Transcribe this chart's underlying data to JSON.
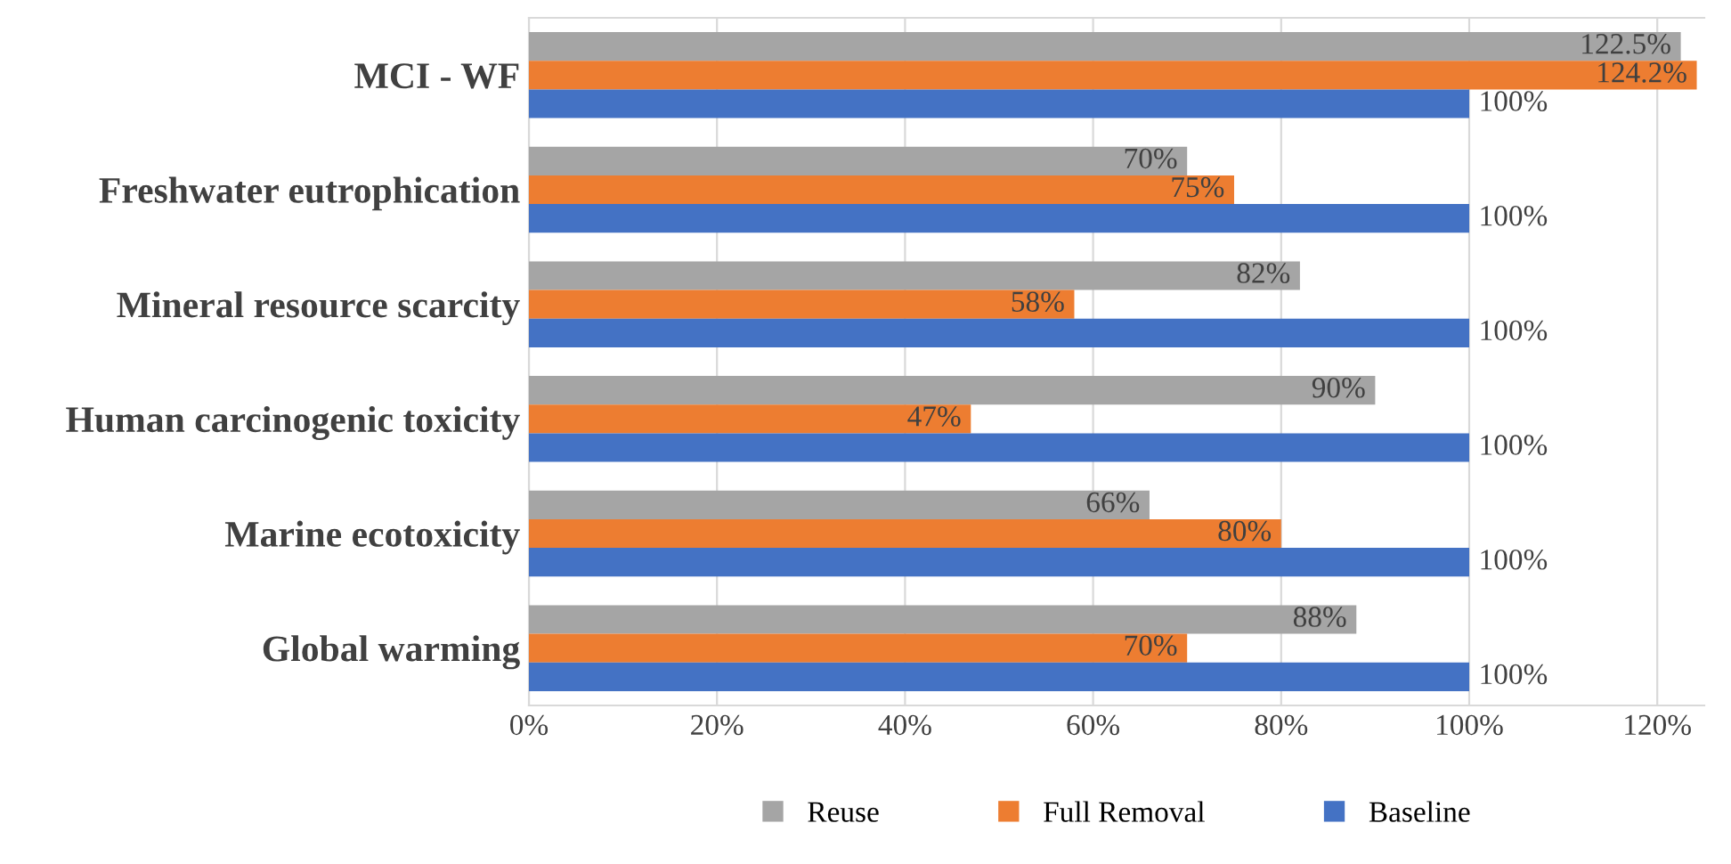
{
  "chart_data": {
    "type": "bar",
    "orientation": "horizontal",
    "categories": [
      "MCI - WF",
      "Freshwater eutrophication",
      "Mineral resource scarcity",
      "Human carcinogenic toxicity",
      "Marine ecotoxicity",
      "Global warming"
    ],
    "series": [
      {
        "name": "Reuse",
        "color": "#a5a5a5",
        "values": [
          122.5,
          70,
          82,
          90,
          66,
          88
        ],
        "value_labels": [
          "122.5%",
          "70%",
          "82%",
          "90%",
          "66%",
          "88%"
        ]
      },
      {
        "name": "Full Removal",
        "color": "#ed7d31",
        "values": [
          124.2,
          75,
          58,
          47,
          80,
          70
        ],
        "value_labels": [
          "124.2%",
          "75%",
          "58%",
          "47%",
          "80%",
          "70%"
        ]
      },
      {
        "name": "Baseline",
        "color": "#4472c4",
        "values": [
          100,
          100,
          100,
          100,
          100,
          100
        ],
        "value_labels": [
          "100%",
          "100%",
          "100%",
          "100%",
          "100%",
          "100%"
        ]
      }
    ],
    "xlim": [
      0,
      125
    ],
    "xticks": [
      {
        "value": 0,
        "label": "0%"
      },
      {
        "value": 20,
        "label": "20%"
      },
      {
        "value": 40,
        "label": "40%"
      },
      {
        "value": 60,
        "label": "60%"
      },
      {
        "value": 80,
        "label": "80%"
      },
      {
        "value": 100,
        "label": "100%"
      },
      {
        "value": 120,
        "label": "120%"
      }
    ],
    "grid": "x",
    "legend": "bottom"
  }
}
